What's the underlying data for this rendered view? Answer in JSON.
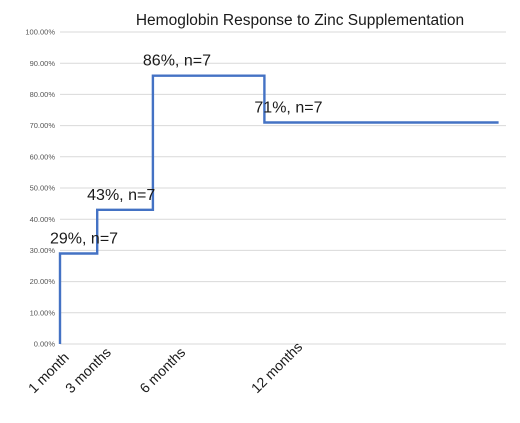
{
  "colors": {
    "series": "#4472c4",
    "grid": "#d9d9d9",
    "text": "#1a1a1a",
    "tick_text": "#555555"
  },
  "chart_data": {
    "type": "line",
    "step": true,
    "title": "Hemoglobin Response to Zinc Supplementation",
    "xlabel": "",
    "ylabel": "",
    "ylim": [
      0,
      100
    ],
    "xlim": [
      0,
      12
    ],
    "grid": true,
    "y_ticks": [
      "0.00%",
      "10.00%",
      "20.00%",
      "30.00%",
      "40.00%",
      "50.00%",
      "60.00%",
      "70.00%",
      "80.00%",
      "90.00%",
      "100.00%"
    ],
    "x_ticks": [
      {
        "month": 0,
        "label": "1 month"
      },
      {
        "month": 1,
        "label": "3 months"
      },
      {
        "month": 3,
        "label": "6 months"
      },
      {
        "month": 6,
        "label": "12 months"
      }
    ],
    "series": [
      {
        "points": [
          {
            "month": 0,
            "value": 0
          },
          {
            "month": 0,
            "value": 29
          },
          {
            "month": 1,
            "value": 29
          },
          {
            "month": 1,
            "value": 43
          },
          {
            "month": 2.5,
            "value": 43
          },
          {
            "month": 2.5,
            "value": 86
          },
          {
            "month": 5.5,
            "value": 86
          },
          {
            "month": 5.5,
            "value": 71
          },
          {
            "month": 11.8,
            "value": 71
          }
        ]
      }
    ],
    "annotations": [
      {
        "text": "29%, n=7",
        "month": 0,
        "value": 29
      },
      {
        "text": "43%, n=7",
        "month": 1,
        "value": 43
      },
      {
        "text": "86%, n=7",
        "month": 2.5,
        "value": 86
      },
      {
        "text": "71%, n=7",
        "month": 5.5,
        "value": 71
      }
    ]
  }
}
